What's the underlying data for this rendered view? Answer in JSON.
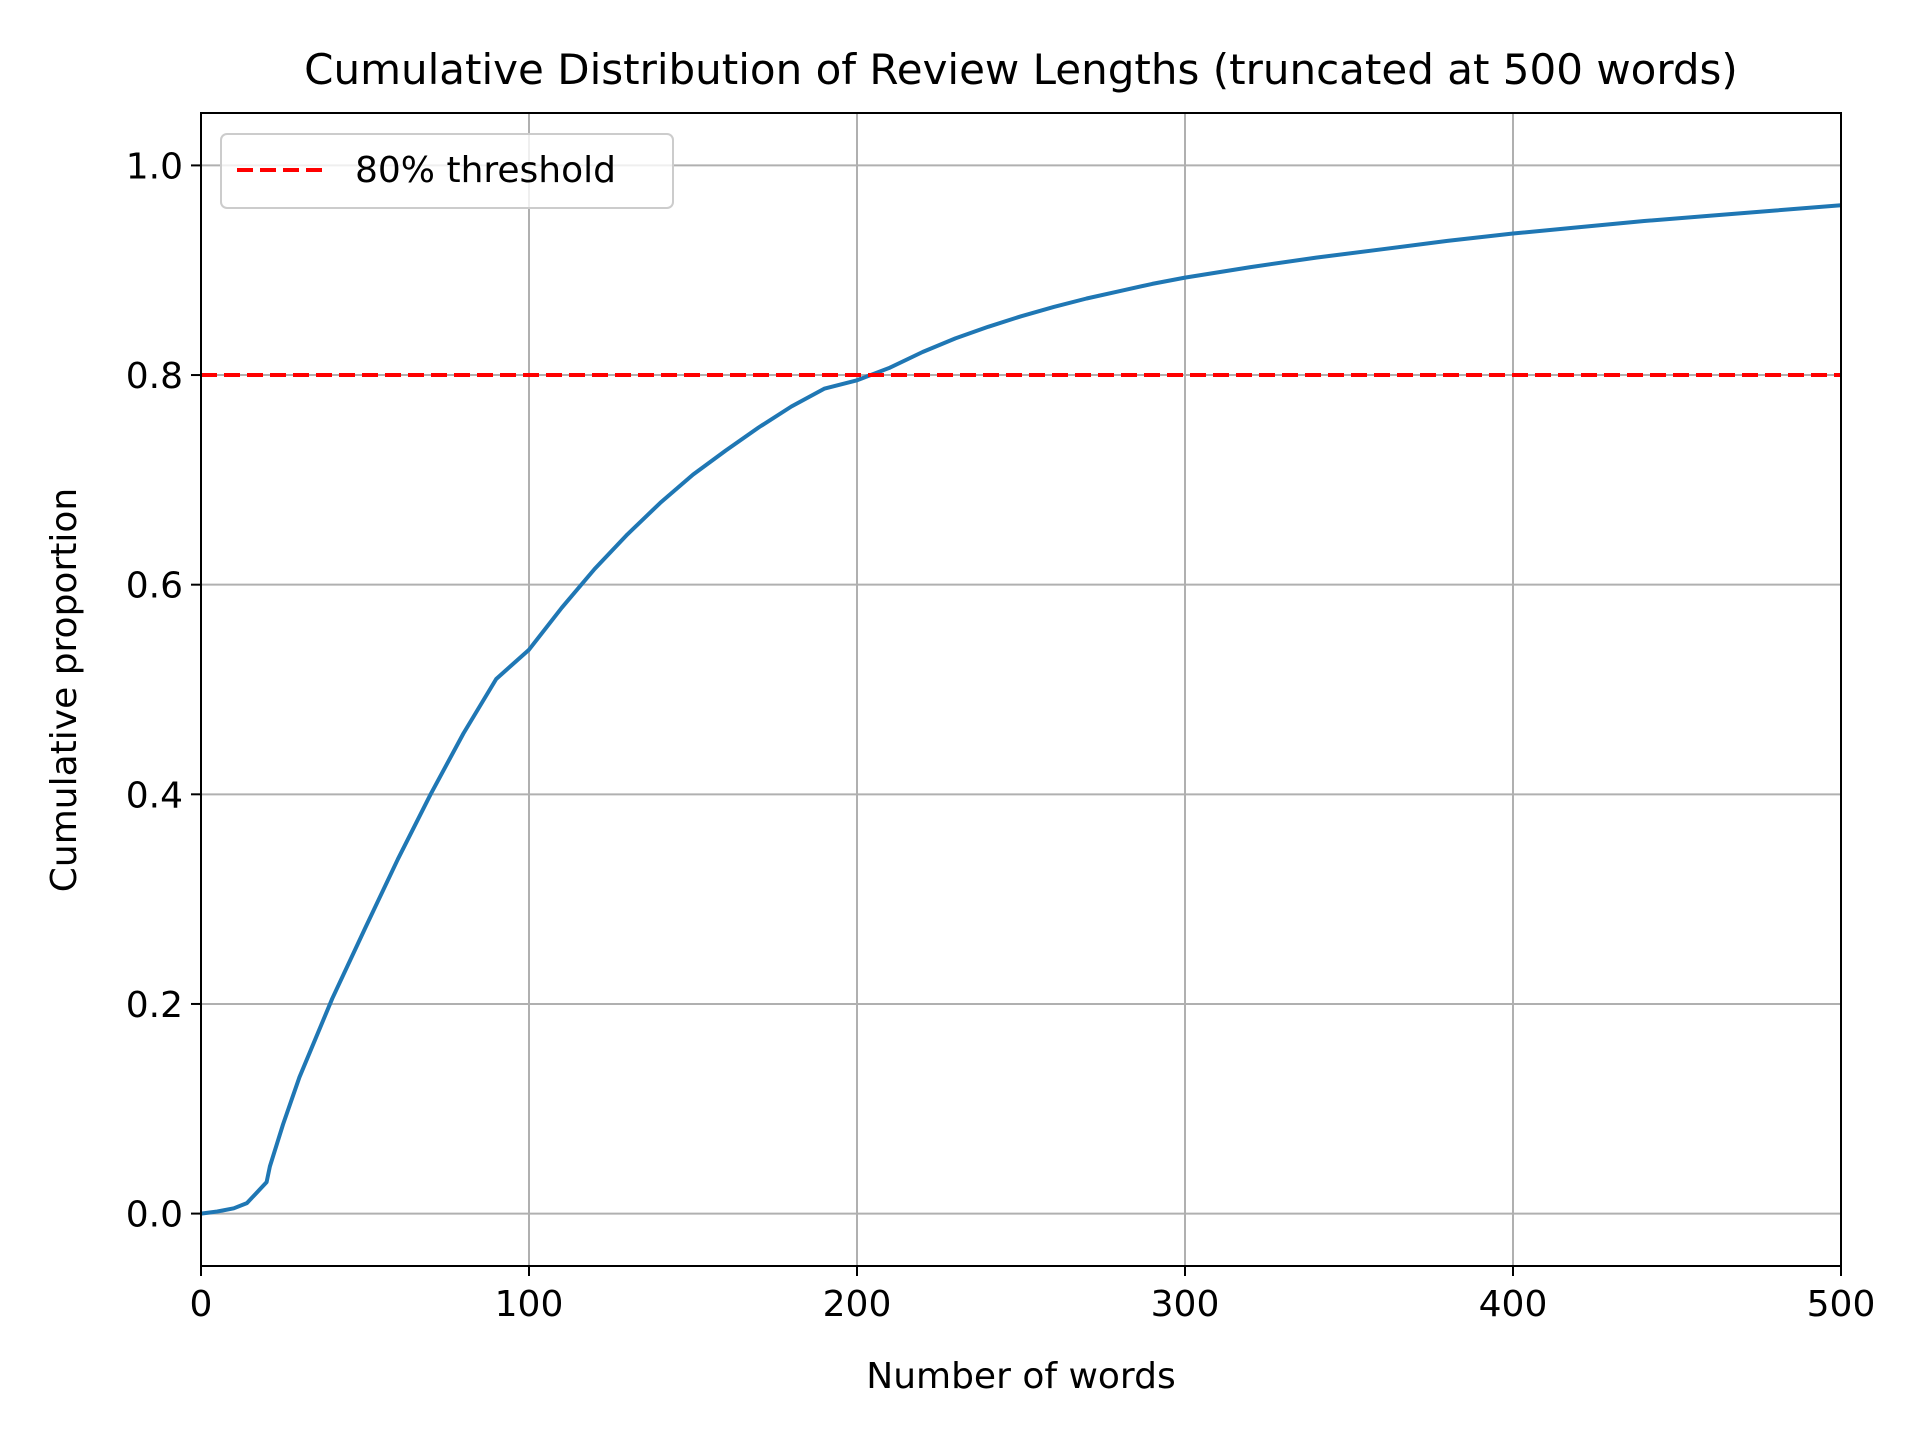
{
  "chart_data": {
    "type": "line",
    "title": "Cumulative Distribution of Review Lengths (truncated at 500 words)",
    "xlabel": "Number of words",
    "ylabel": "Cumulative proportion",
    "xlim": [
      0,
      500
    ],
    "ylim": [
      -0.05,
      1.05
    ],
    "xticks": [
      0,
      100,
      200,
      300,
      400,
      500
    ],
    "xtick_labels": [
      "0",
      "100",
      "200",
      "300",
      "400",
      "500"
    ],
    "yticks": [
      0.0,
      0.2,
      0.4,
      0.6,
      0.8,
      1.0
    ],
    "ytick_labels": [
      "0.0",
      "0.2",
      "0.4",
      "0.6",
      "0.8",
      "1.0"
    ],
    "grid": true,
    "legend": {
      "placement": "top-left",
      "entries": [
        "80% threshold"
      ]
    },
    "series": [
      {
        "color": "#1f77b4",
        "style": "solid",
        "x": [
          0,
          5,
          10,
          14,
          17,
          20,
          21,
          25,
          30,
          40,
          50,
          60,
          70,
          80,
          90,
          100,
          110,
          120,
          130,
          140,
          150,
          160,
          170,
          180,
          190,
          200,
          210,
          220,
          230,
          240,
          250,
          260,
          270,
          280,
          290,
          300,
          320,
          340,
          360,
          380,
          400,
          420,
          440,
          460,
          480,
          500
        ],
        "y": [
          0.0,
          0.002,
          0.005,
          0.01,
          0.02,
          0.03,
          0.045,
          0.085,
          0.13,
          0.205,
          0.272,
          0.338,
          0.4,
          0.458,
          0.51,
          0.538,
          0.578,
          0.615,
          0.648,
          0.678,
          0.705,
          0.728,
          0.75,
          0.77,
          0.787,
          0.795,
          0.807,
          0.822,
          0.835,
          0.846,
          0.856,
          0.865,
          0.873,
          0.88,
          0.887,
          0.893,
          0.903,
          0.912,
          0.92,
          0.928,
          0.935,
          0.941,
          0.947,
          0.952,
          0.957,
          0.962
        ]
      },
      {
        "name": "80% threshold",
        "color": "#ff0000",
        "style": "dashed",
        "x": [
          0,
          500
        ],
        "y": [
          0.8,
          0.8
        ]
      }
    ]
  }
}
